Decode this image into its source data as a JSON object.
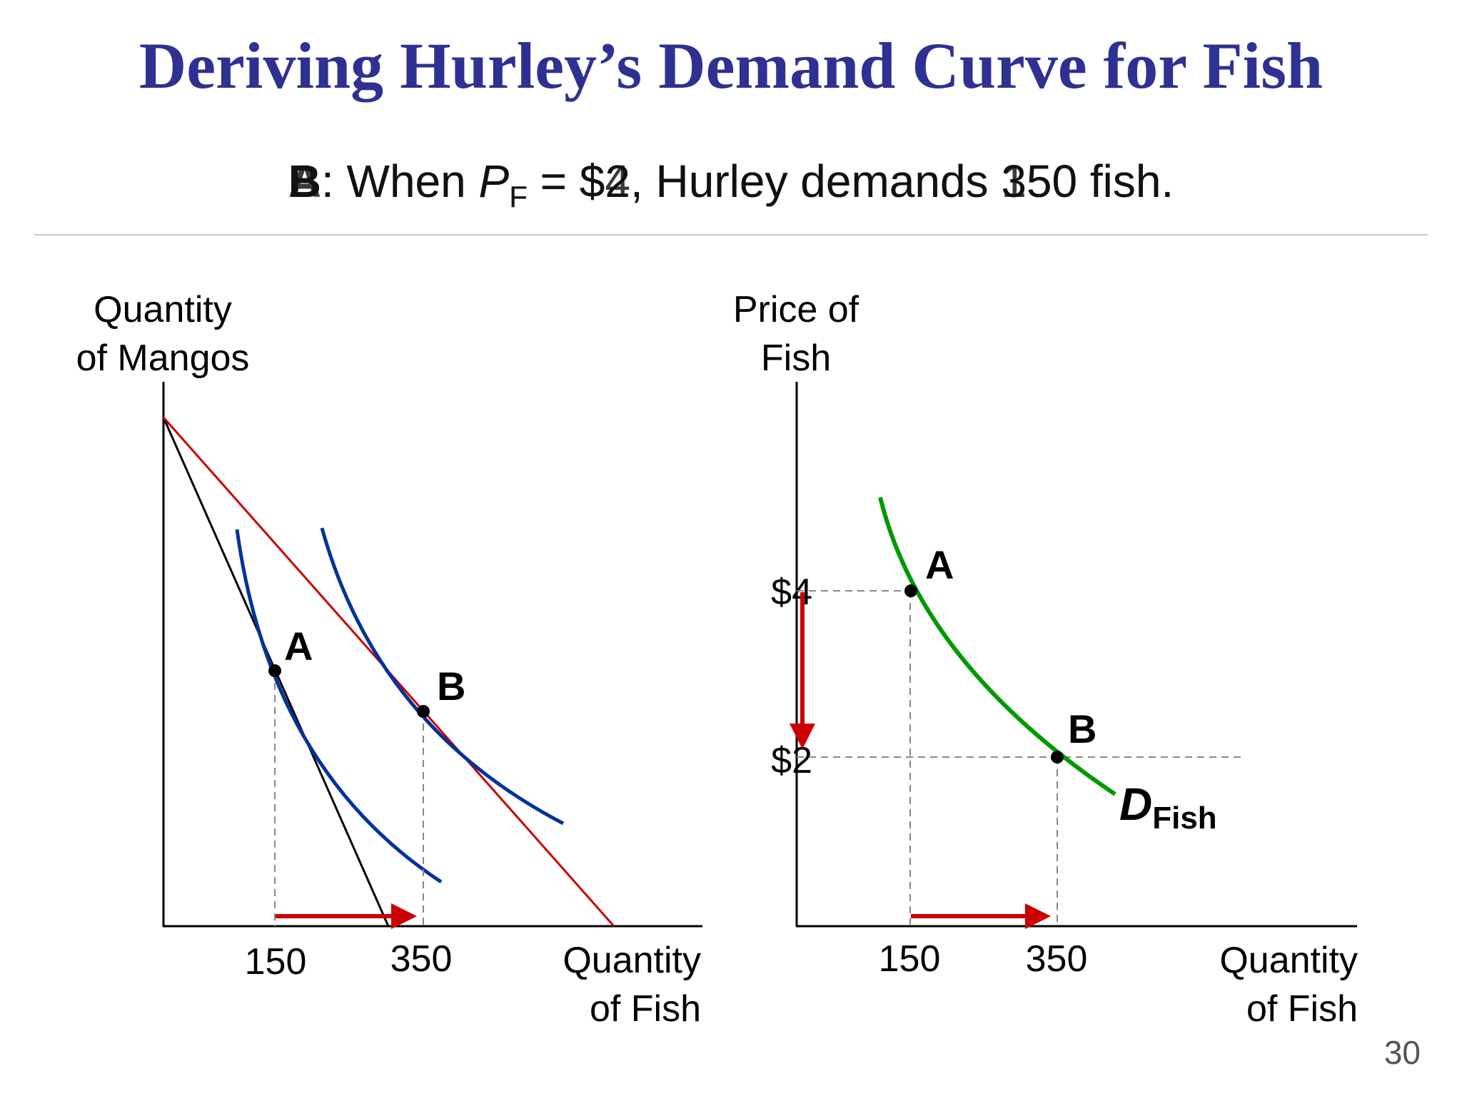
{
  "title": "Deriving Hurley’s Demand Curve for Fish",
  "subtitle": {
    "point_b": {
      "label": "B",
      "text_before": ": When ",
      "var": "P",
      "sub": "F",
      "text_after": " = $2, Hurley demands 350 fish."
    },
    "point_a": {
      "label": "A",
      "text_before": ": When ",
      "var": "P",
      "sub": "F",
      "text_after": " = $4, Hurley demands 150 fish."
    }
  },
  "left_chart": {
    "ylabel_line1": "Quantity",
    "ylabel_line2": "of Mangos",
    "xlabel_line1": "Quantity",
    "xlabel_line2": "of Fish",
    "ticks": [
      "150",
      "350"
    ],
    "point_labels": [
      "A",
      "B"
    ]
  },
  "right_chart": {
    "ylabel_line1": "Price of",
    "ylabel_line2": "Fish",
    "xlabel_line1": "Quantity",
    "xlabel_line2": "of Fish",
    "xticks": [
      "150",
      "350"
    ],
    "yticks": [
      "$4",
      "$2"
    ],
    "point_labels": [
      "A",
      "B"
    ],
    "demand_label": "D",
    "demand_sub": "Fish"
  },
  "chart_data": [
    {
      "type": "line",
      "chart": "budget constraint / indifference curves",
      "xlabel": "Quantity of Fish",
      "ylabel": "Quantity of Mangos",
      "points": [
        {
          "name": "A",
          "x": 150
        },
        {
          "name": "B",
          "x": 350
        }
      ],
      "series": [
        {
          "color": "#000000"
        },
        {
          "color": "#cc0000"
        },
        {
          "color": "#003399"
        },
        {
          "color": "#003399"
        }
      ],
      "arrow": {
        "from_x": 150,
        "to_x": 350,
        "color": "#cc0000"
      }
    },
    {
      "type": "line",
      "chart": "demand curve",
      "xlabel": "Quantity of Fish",
      "ylabel": "Price of Fish",
      "series": [
        {
          "name": "DFish",
          "color": "#009900",
          "points": [
            {
              "label": "A",
              "x": 150,
              "y": 4
            },
            {
              "label": "B",
              "x": 350,
              "y": 2
            }
          ]
        }
      ],
      "price_arrow": {
        "from_y": 4,
        "to_y": 2,
        "color": "#cc0000"
      },
      "quantity_arrow": {
        "from_x": 150,
        "to_x": 350,
        "color": "#cc0000"
      }
    }
  ],
  "colors": {
    "title": "#2e3192",
    "budget_old": "#000000",
    "budget_new": "#cc0000",
    "indifference": "#003399",
    "demand": "#009900",
    "arrow": "#cc0000"
  },
  "page_number": "30"
}
